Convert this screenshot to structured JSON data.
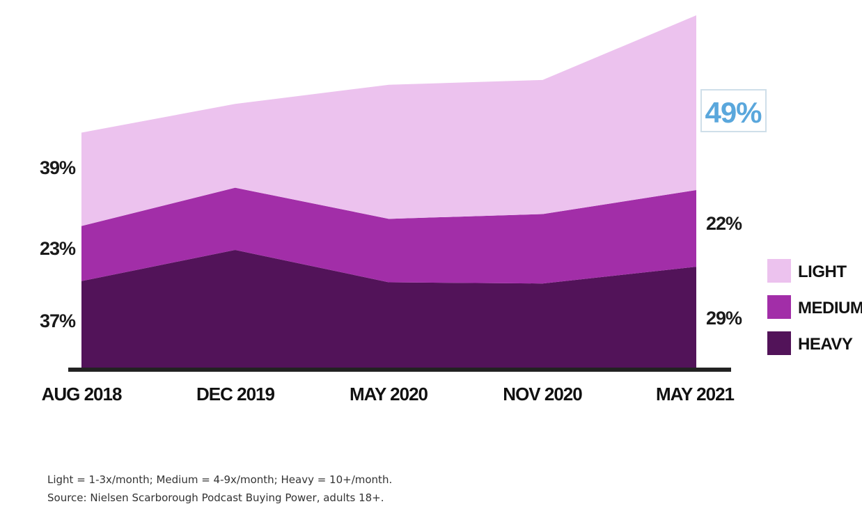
{
  "chart_data": {
    "type": "area",
    "stacked": true,
    "categories": [
      "AUG 2018",
      "DEC 2019",
      "MAY 2020",
      "NOV 2020",
      "MAY 2021"
    ],
    "series": [
      {
        "name": "HEAVY",
        "color": "#521359",
        "values": [
          37,
          50,
          36.5,
          36,
          43
        ]
      },
      {
        "name": "MEDIUM",
        "color": "#a22ea8",
        "values": [
          23,
          26,
          26.5,
          29,
          32
        ]
      },
      {
        "name": "LIGHT",
        "color": "#ecc2ee",
        "values": [
          39,
          35,
          56,
          56,
          73
        ]
      }
    ],
    "labels_first": [
      "37%",
      "23%",
      "39%"
    ],
    "labels_last": [
      "29%",
      "22%",
      "49%"
    ],
    "legend_position": "right",
    "grid": false,
    "ylim": [
      0,
      148
    ]
  },
  "legend": {
    "items": [
      {
        "label": "LIGHT",
        "color": "#ecc2ee"
      },
      {
        "label": "MEDIUM",
        "color": "#a22ea8"
      },
      {
        "label": "HEAVY",
        "color": "#521359"
      }
    ]
  },
  "footnotes": {
    "definition": "Light = 1-3x/month; Medium = 4-9x/month; Heavy = 10+/month.",
    "source": "Source: Nielsen Scarborough Podcast Buying Power, adults 18+."
  }
}
